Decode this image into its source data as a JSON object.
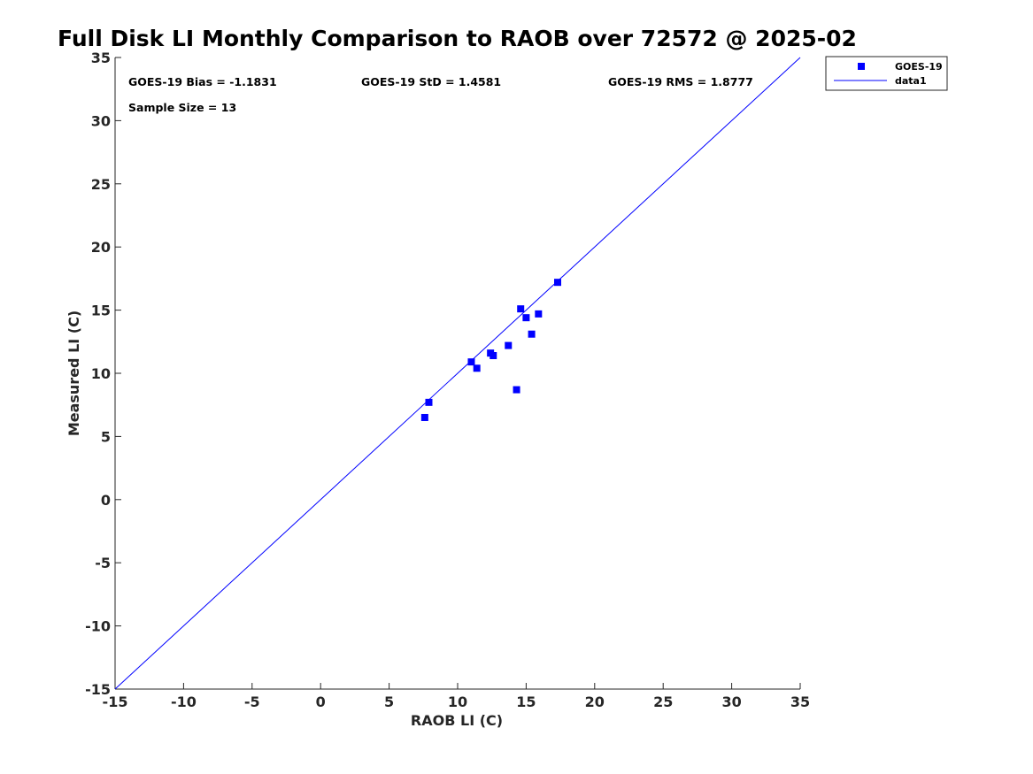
{
  "chart_data": {
    "type": "scatter",
    "title": "Full Disk LI Monthly Comparison to RAOB over 72572 @ 2025-02",
    "xlabel": "RAOB LI (C)",
    "ylabel": "Measured LI (C)",
    "xlim": [
      -15,
      35
    ],
    "ylim": [
      -15,
      35
    ],
    "xticks": [
      "-15",
      "-10",
      "-5",
      "0",
      "5",
      "10",
      "15",
      "20",
      "25",
      "30",
      "35"
    ],
    "yticks": [
      "-15",
      "-10",
      "-5",
      "0",
      "5",
      "10",
      "15",
      "20",
      "25",
      "30",
      "35"
    ],
    "grid": false,
    "legend_position": "outside-top-right",
    "annotations": {
      "bias": "GOES-19 Bias = -1.1831",
      "std": "GOES-19 StD = 1.4581",
      "rms": "GOES-19 RMS = 1.8777",
      "sample_size": "Sample Size = 13"
    },
    "series": [
      {
        "name": "GOES-19",
        "kind": "scatter",
        "marker": "square",
        "color": "#0000ff",
        "points": [
          {
            "x": 7.6,
            "y": 6.5
          },
          {
            "x": 7.9,
            "y": 7.7
          },
          {
            "x": 11.0,
            "y": 10.9
          },
          {
            "x": 11.4,
            "y": 10.4
          },
          {
            "x": 12.4,
            "y": 11.6
          },
          {
            "x": 12.6,
            "y": 11.4
          },
          {
            "x": 13.7,
            "y": 12.2
          },
          {
            "x": 14.3,
            "y": 8.7
          },
          {
            "x": 14.6,
            "y": 15.1
          },
          {
            "x": 15.0,
            "y": 14.4
          },
          {
            "x": 15.4,
            "y": 13.1
          },
          {
            "x": 15.9,
            "y": 14.7
          },
          {
            "x": 17.3,
            "y": 17.2
          }
        ]
      },
      {
        "name": "data1",
        "kind": "line",
        "color": "#0000ff",
        "points": [
          {
            "x": -15,
            "y": -15
          },
          {
            "x": 35,
            "y": 35
          }
        ]
      }
    ]
  }
}
